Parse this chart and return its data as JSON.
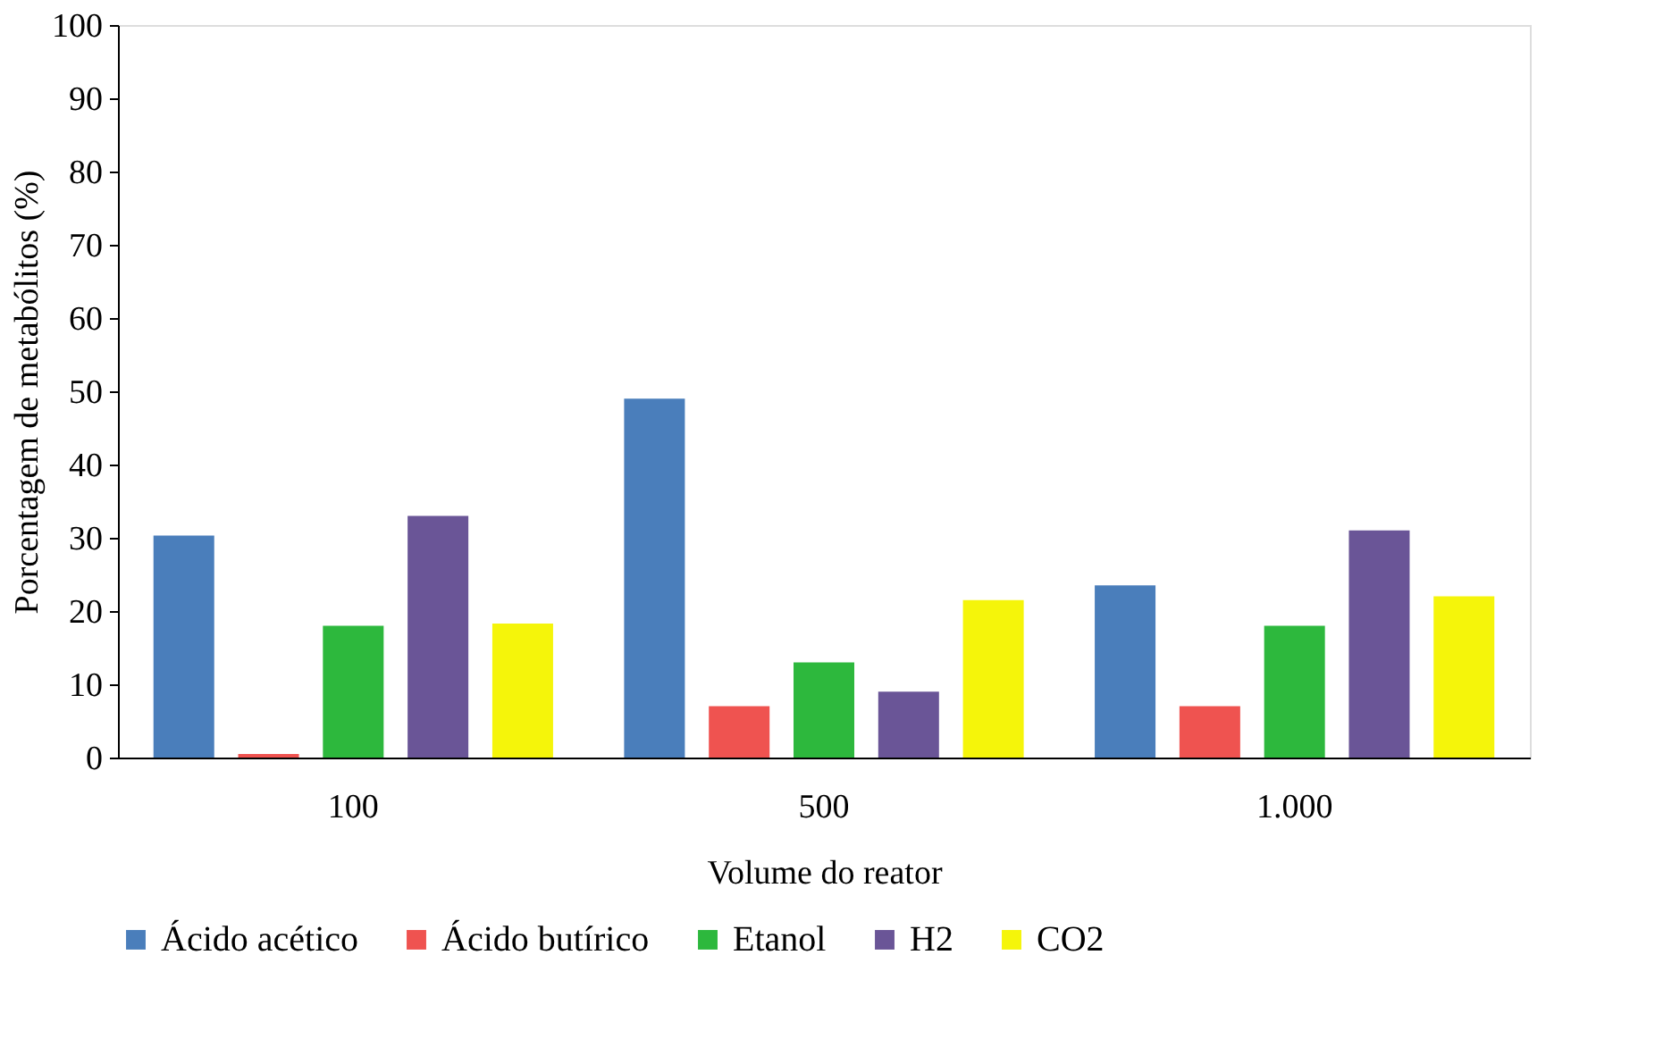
{
  "chart_data": {
    "type": "bar",
    "xlabel": "Volume do reator",
    "ylabel": "Porcentagem de metabólitos (%)",
    "categories": [
      "100",
      "500",
      "1.000"
    ],
    "series": [
      {
        "name": "Ácido acético",
        "color": "#4a7ebb",
        "values": [
          30.3,
          49,
          23.5
        ]
      },
      {
        "name": "Ácido butírico",
        "color": "#ef5350",
        "values": [
          0.5,
          7,
          7
        ]
      },
      {
        "name": "Etanol",
        "color": "#2db83d",
        "values": [
          18,
          13,
          18
        ]
      },
      {
        "name": "H2",
        "color": "#6a5597",
        "values": [
          33,
          9,
          31
        ]
      },
      {
        "name": "CO2",
        "color": "#f5f50a",
        "values": [
          18.3,
          21.5,
          22
        ]
      }
    ],
    "ylim": [
      0,
      100
    ],
    "yticks": [
      0,
      10,
      20,
      30,
      40,
      50,
      60,
      70,
      80,
      90,
      100
    ],
    "grid": false,
    "legend": "bottom"
  }
}
